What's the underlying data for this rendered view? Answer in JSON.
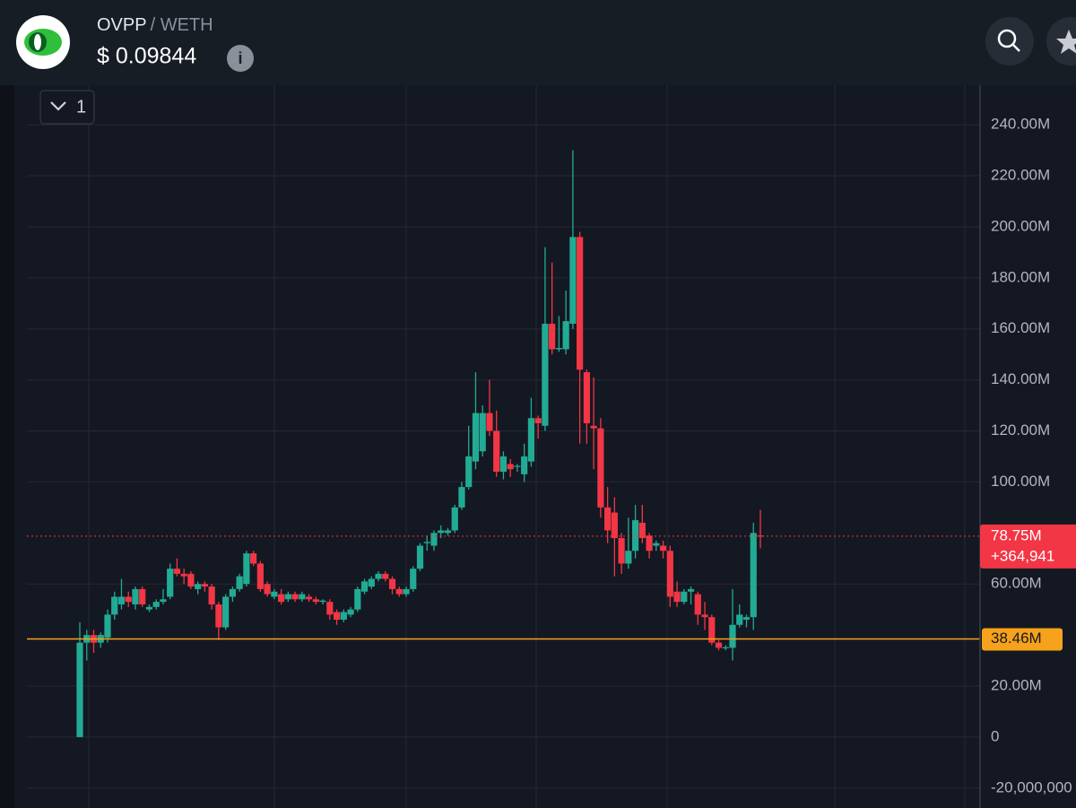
{
  "header": {
    "pair_base": "OVPP",
    "pair_quote": "/ WETH",
    "price": "$ 0.09844",
    "info_icon": "i"
  },
  "chart_data": {
    "type": "candlestick",
    "interval": "1",
    "up_color": "#22ab94",
    "down_color": "#f23645",
    "ylim": [
      -27800000.0,
      255500000.0
    ],
    "yticks": [
      {
        "value": 240000000,
        "label": "240.00M"
      },
      {
        "value": 220000000,
        "label": "220.00M"
      },
      {
        "value": 200000000,
        "label": "200.00M"
      },
      {
        "value": 180000000,
        "label": "180.00M"
      },
      {
        "value": 160000000,
        "label": "160.00M"
      },
      {
        "value": 140000000,
        "label": "140.00M"
      },
      {
        "value": 120000000,
        "label": "120.00M"
      },
      {
        "value": 100000000,
        "label": "100.00M"
      },
      {
        "value": 60000000,
        "label": "60.00M"
      },
      {
        "value": 20000000,
        "label": "20.00M"
      },
      0,
      {
        "value": -20000000,
        "label": "-20,000,000"
      }
    ],
    "grid": true,
    "last_price": {
      "value": 78750000,
      "label": "78.75M",
      "change": "+364,941",
      "color": "#f23645"
    },
    "level": {
      "value": 38460000,
      "label": "38.46M",
      "color": "#f7a21b"
    },
    "candles": [
      {
        "o": 0,
        "h": 45000000.0,
        "l": 0,
        "c": 37000000.0
      },
      {
        "o": 37000000.0,
        "h": 42000000.0,
        "l": 30000000.0,
        "c": 40000000.0
      },
      {
        "o": 40000000.0,
        "h": 42000000.0,
        "l": 33000000.0,
        "c": 37000000.0
      },
      {
        "o": 37000000.0,
        "h": 41000000.0,
        "l": 35000000.0,
        "c": 40000000.0
      },
      {
        "o": 39000000.0,
        "h": 50000000.0,
        "l": 37000000.0,
        "c": 48000000.0
      },
      {
        "o": 48000000.0,
        "h": 57000000.0,
        "l": 46000000.0,
        "c": 55000000.0
      },
      {
        "o": 52000000.0,
        "h": 62000000.0,
        "l": 50000000.0,
        "c": 55000000.0
      },
      {
        "o": 55000000.0,
        "h": 57000000.0,
        "l": 51000000.0,
        "c": 53000000.0
      },
      {
        "o": 52000000.0,
        "h": 59000000.0,
        "l": 50000000.0,
        "c": 58000000.0
      },
      {
        "o": 58000000.0,
        "h": 59000000.0,
        "l": 51000000.0,
        "c": 52000000.0
      },
      {
        "o": 50000000.0,
        "h": 52000000.0,
        "l": 49000000.0,
        "c": 51000000.0
      },
      {
        "o": 51000000.0,
        "h": 54000000.0,
        "l": 50000000.0,
        "c": 53000000.0
      },
      {
        "o": 53000000.0,
        "h": 58000000.0,
        "l": 52000000.0,
        "c": 54000000.0
      },
      {
        "o": 55000000.0,
        "h": 68000000.0,
        "l": 54000000.0,
        "c": 66000000.0
      },
      {
        "o": 66000000.0,
        "h": 70000000.0,
        "l": 63000000.0,
        "c": 64000000.0
      },
      {
        "o": 64000000.0,
        "h": 66000000.0,
        "l": 60000000.0,
        "c": 63000000.0
      },
      {
        "o": 64000000.0,
        "h": 65000000.0,
        "l": 58000000.0,
        "c": 59000000.0
      },
      {
        "o": 58000000.0,
        "h": 61000000.0,
        "l": 56000000.0,
        "c": 60000000.0
      },
      {
        "o": 60000000.0,
        "h": 61000000.0,
        "l": 57000000.0,
        "c": 59000000.0
      },
      {
        "o": 59000000.0,
        "h": 60000000.0,
        "l": 50000000.0,
        "c": 52000000.0
      },
      {
        "o": 52000000.0,
        "h": 53000000.0,
        "l": 38000000.0,
        "c": 43000000.0
      },
      {
        "o": 43000000.0,
        "h": 56000000.0,
        "l": 42000000.0,
        "c": 55000000.0
      },
      {
        "o": 55000000.0,
        "h": 59000000.0,
        "l": 53000000.0,
        "c": 58000000.0
      },
      {
        "o": 58000000.0,
        "h": 64000000.0,
        "l": 57000000.0,
        "c": 63000000.0
      },
      {
        "o": 60000000.0,
        "h": 73000000.0,
        "l": 59000000.0,
        "c": 72000000.0
      },
      {
        "o": 72000000.0,
        "h": 73000000.0,
        "l": 67000000.0,
        "c": 68000000.0
      },
      {
        "o": 68000000.0,
        "h": 69000000.0,
        "l": 57000000.0,
        "c": 58000000.0
      },
      {
        "o": 60000000.0,
        "h": 61000000.0,
        "l": 55000000.0,
        "c": 56000000.0
      },
      {
        "o": 55000000.0,
        "h": 58000000.0,
        "l": 54000000.0,
        "c": 57000000.0
      },
      {
        "o": 56000000.0,
        "h": 58000000.0,
        "l": 52000000.0,
        "c": 53000000.0
      },
      {
        "o": 54000000.0,
        "h": 57000000.0,
        "l": 53000000.0,
        "c": 56000000.0
      },
      {
        "o": 56000000.0,
        "h": 57000000.0,
        "l": 53000000.0,
        "c": 54000000.0
      },
      {
        "o": 54000000.0,
        "h": 57000000.0,
        "l": 53000000.0,
        "c": 56000000.0
      },
      {
        "o": 55000000.0,
        "h": 56000000.0,
        "l": 53000000.0,
        "c": 54000000.0
      },
      {
        "o": 54000000.0,
        "h": 55000000.0,
        "l": 52000000.0,
        "c": 53000000.0
      },
      {
        "o": 53000000.0,
        "h": 54000000.0,
        "l": 52000000.0,
        "c": 53500000.0
      },
      {
        "o": 53000000.0,
        "h": 54000000.0,
        "l": 46000000.0,
        "c": 48000000.0
      },
      {
        "o": 49000000.0,
        "h": 50000000.0,
        "l": 44000000.0,
        "c": 46000000.0
      },
      {
        "o": 46000000.0,
        "h": 50000000.0,
        "l": 45000000.0,
        "c": 49000000.0
      },
      {
        "o": 48000000.0,
        "h": 51000000.0,
        "l": 47000000.0,
        "c": 50000000.0
      },
      {
        "o": 50000000.0,
        "h": 59000000.0,
        "l": 49000000.0,
        "c": 58000000.0
      },
      {
        "o": 57000000.0,
        "h": 62000000.0,
        "l": 56000000.0,
        "c": 61000000.0
      },
      {
        "o": 59000000.0,
        "h": 63000000.0,
        "l": 58000000.0,
        "c": 62000000.0
      },
      {
        "o": 62000000.0,
        "h": 65000000.0,
        "l": 61000000.0,
        "c": 64000000.0
      },
      {
        "o": 64000000.0,
        "h": 65000000.0,
        "l": 61000000.0,
        "c": 62000000.0
      },
      {
        "o": 62000000.0,
        "h": 63000000.0,
        "l": 56000000.0,
        "c": 58000000.0
      },
      {
        "o": 58000000.0,
        "h": 59000000.0,
        "l": 55000000.0,
        "c": 56000000.0
      },
      {
        "o": 56000000.0,
        "h": 59000000.0,
        "l": 55000000.0,
        "c": 58000000.0
      },
      {
        "o": 58000000.0,
        "h": 67000000.0,
        "l": 57000000.0,
        "c": 66000000.0
      },
      {
        "o": 66000000.0,
        "h": 76000000.0,
        "l": 65000000.0,
        "c": 75000000.0
      },
      {
        "o": 76000000.0,
        "h": 79000000.0,
        "l": 73000000.0,
        "c": 76500000.0
      },
      {
        "o": 75000000.0,
        "h": 81000000.0,
        "l": 73000000.0,
        "c": 80000000.0
      },
      {
        "o": 80000000.0,
        "h": 83000000.0,
        "l": 78000000.0,
        "c": 81000000.0
      },
      {
        "o": 80000000.0,
        "h": 82000000.0,
        "l": 79000000.0,
        "c": 81000000.0
      },
      {
        "o": 81000000.0,
        "h": 91000000.0,
        "l": 80000000.0,
        "c": 90000000.0
      },
      {
        "o": 90000000.0,
        "h": 100000000.0,
        "l": 89000000.0,
        "c": 98000000.0
      },
      {
        "o": 98000000.0,
        "h": 122000000.0,
        "l": 97000000.0,
        "c": 110000000.0
      },
      {
        "o": 108000000.0,
        "h": 143000000.0,
        "l": 105000000.0,
        "c": 127000000.0
      },
      {
        "o": 112000000.0,
        "h": 130000000.0,
        "l": 110000000.0,
        "c": 127000000.0
      },
      {
        "o": 127000000.0,
        "h": 140000000.0,
        "l": 118000000.0,
        "c": 120000000.0
      },
      {
        "o": 120000000.0,
        "h": 128000000.0,
        "l": 102000000.0,
        "c": 104000000.0
      },
      {
        "o": 104000000.0,
        "h": 112000000.0,
        "l": 101000000.0,
        "c": 110000000.0
      },
      {
        "o": 107000000.0,
        "h": 109000000.0,
        "l": 102000000.0,
        "c": 105000000.0
      },
      {
        "o": 106000000.0,
        "h": 107000000.0,
        "l": 104000000.0,
        "c": 106300000.0
      },
      {
        "o": 103000000.0,
        "h": 115000000.0,
        "l": 100000000.0,
        "c": 110000000.0
      },
      {
        "o": 108000000.0,
        "h": 133000000.0,
        "l": 106000000.0,
        "c": 125000000.0
      },
      {
        "o": 125000000.0,
        "h": 126000000.0,
        "l": 117000000.0,
        "c": 123000000.0
      },
      {
        "o": 122000000.0,
        "h": 192000000.0,
        "l": 120000000.0,
        "c": 162000000.0
      },
      {
        "o": 162000000.0,
        "h": 186000000.0,
        "l": 150000000.0,
        "c": 152000000.0
      },
      {
        "o": 152000000.0,
        "h": 165000000.0,
        "l": 151000000.0,
        "c": 152500000.0
      },
      {
        "o": 152000000.0,
        "h": 175000000.0,
        "l": 150000000.0,
        "c": 163000000.0
      },
      {
        "o": 162000000.0,
        "h": 230000000.0,
        "l": 160000000.0,
        "c": 196000000.0
      },
      {
        "o": 196000000.0,
        "h": 198000000.0,
        "l": 115000000.0,
        "c": 144000000.0
      },
      {
        "o": 143000000.0,
        "h": 144000000.0,
        "l": 115000000.0,
        "c": 123000000.0
      },
      {
        "o": 122000000.0,
        "h": 141000000.0,
        "l": 105000000.0,
        "c": 121000000.0
      },
      {
        "o": 121000000.0,
        "h": 125000000.0,
        "l": 86000000.0,
        "c": 90000000.0
      },
      {
        "o": 90000000.0,
        "h": 98000000.0,
        "l": 76000000.0,
        "c": 81000000.0
      },
      {
        "o": 88000000.0,
        "h": 94000000.0,
        "l": 63000000.0,
        "c": 78000000.0
      },
      {
        "o": 78000000.0,
        "h": 80000000.0,
        "l": 64000000.0,
        "c": 68000000.0
      },
      {
        "o": 68000000.0,
        "h": 86000000.0,
        "l": 66000000.0,
        "c": 73000000.0
      },
      {
        "o": 73000000.0,
        "h": 91000000.0,
        "l": 70000000.0,
        "c": 85000000.0
      },
      {
        "o": 84000000.0,
        "h": 91000000.0,
        "l": 76000000.0,
        "c": 78000000.0
      },
      {
        "o": 79000000.0,
        "h": 80000000.0,
        "l": 70000000.0,
        "c": 73000000.0
      },
      {
        "o": 75000000.0,
        "h": 77000000.0,
        "l": 73000000.0,
        "c": 76000000.0
      },
      {
        "o": 75000000.0,
        "h": 77000000.0,
        "l": 70000000.0,
        "c": 73000000.0
      },
      {
        "o": 73000000.0,
        "h": 75000000.0,
        "l": 51000000.0,
        "c": 55000000.0
      },
      {
        "o": 57000000.0,
        "h": 61000000.0,
        "l": 51000000.0,
        "c": 53000000.0
      },
      {
        "o": 53000000.0,
        "h": 58000000.0,
        "l": 52000000.0,
        "c": 57000000.0
      },
      {
        "o": 57000000.0,
        "h": 59000000.0,
        "l": 52000000.0,
        "c": 58000000.0
      },
      {
        "o": 56000000.0,
        "h": 57000000.0,
        "l": 44000000.0,
        "c": 48000000.0
      },
      {
        "o": 48000000.0,
        "h": 53000000.0,
        "l": 42000000.0,
        "c": 47000000.0
      },
      {
        "o": 47000000.0,
        "h": 48000000.0,
        "l": 36000000.0,
        "c": 37000000.0
      },
      {
        "o": 37000000.0,
        "h": 38000000.0,
        "l": 34000000.0,
        "c": 35000000.0
      },
      {
        "o": 35000000.0,
        "h": 36000000.0,
        "l": 34000000.0,
        "c": 35200000.0
      },
      {
        "o": 35000000.0,
        "h": 58000000.0,
        "l": 30000000.0,
        "c": 44000000.0
      },
      {
        "o": 44000000.0,
        "h": 52000000.0,
        "l": 43000000.0,
        "c": 48000000.0
      },
      {
        "o": 46000000.0,
        "h": 48000000.0,
        "l": 43000000.0,
        "c": 47000000.0
      },
      {
        "o": 47000000.0,
        "h": 84000000.0,
        "l": 42000000.0,
        "c": 80000000.0
      },
      {
        "o": 79000000.0,
        "h": 89000000.0,
        "l": 74000000.0,
        "c": 78750000.0
      }
    ]
  }
}
